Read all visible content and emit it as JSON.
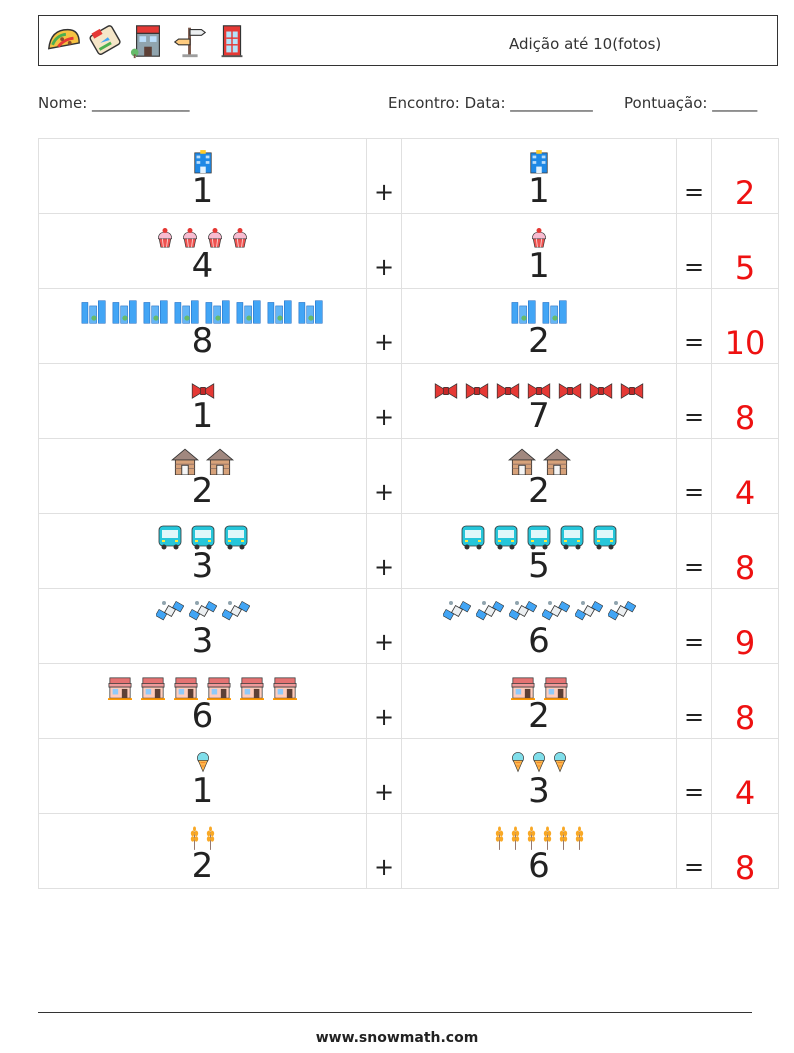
{
  "header": {
    "title": "Adição até 10(fotos)",
    "icons": [
      "taco-icon",
      "travel-ticket-icon",
      "shop-building-icon",
      "signpost-icon",
      "phone-booth-icon"
    ]
  },
  "form": {
    "name_label": "Nome: _____________",
    "meeting_label": "Encontro: Data: ___________",
    "score_label": "Pontuação: ______"
  },
  "symbols": {
    "plus": "+",
    "equals": "="
  },
  "answer_color": "#ee1111",
  "problems": [
    {
      "a": "1",
      "a_icon": "office-building-icon",
      "b": "1",
      "b_icon": "office-building-icon",
      "sum": "2"
    },
    {
      "a": "4",
      "a_icon": "cupcake-icon",
      "b": "1",
      "b_icon": "cupcake-icon",
      "sum": "5"
    },
    {
      "a": "8",
      "a_icon": "skyscrapers-icon",
      "b": "2",
      "b_icon": "skyscrapers-icon",
      "sum": "10"
    },
    {
      "a": "1",
      "a_icon": "bow-tie-icon",
      "b": "7",
      "b_icon": "bow-tie-icon",
      "sum": "8"
    },
    {
      "a": "2",
      "a_icon": "cabin-icon",
      "b": "2",
      "b_icon": "cabin-icon",
      "sum": "4"
    },
    {
      "a": "3",
      "a_icon": "bus-icon",
      "b": "5",
      "b_icon": "bus-icon",
      "sum": "8"
    },
    {
      "a": "3",
      "a_icon": "satellite-icon",
      "b": "6",
      "b_icon": "satellite-icon",
      "sum": "9"
    },
    {
      "a": "6",
      "a_icon": "storefront-icon",
      "b": "2",
      "b_icon": "storefront-icon",
      "sum": "8"
    },
    {
      "a": "1",
      "a_icon": "ice-cream-cone-icon",
      "b": "3",
      "b_icon": "ice-cream-cone-icon",
      "sum": "4"
    },
    {
      "a": "2",
      "a_icon": "wheat-icon",
      "b": "6",
      "b_icon": "wheat-icon",
      "sum": "8"
    }
  ],
  "footer": {
    "website": "www.snowmath.com"
  }
}
